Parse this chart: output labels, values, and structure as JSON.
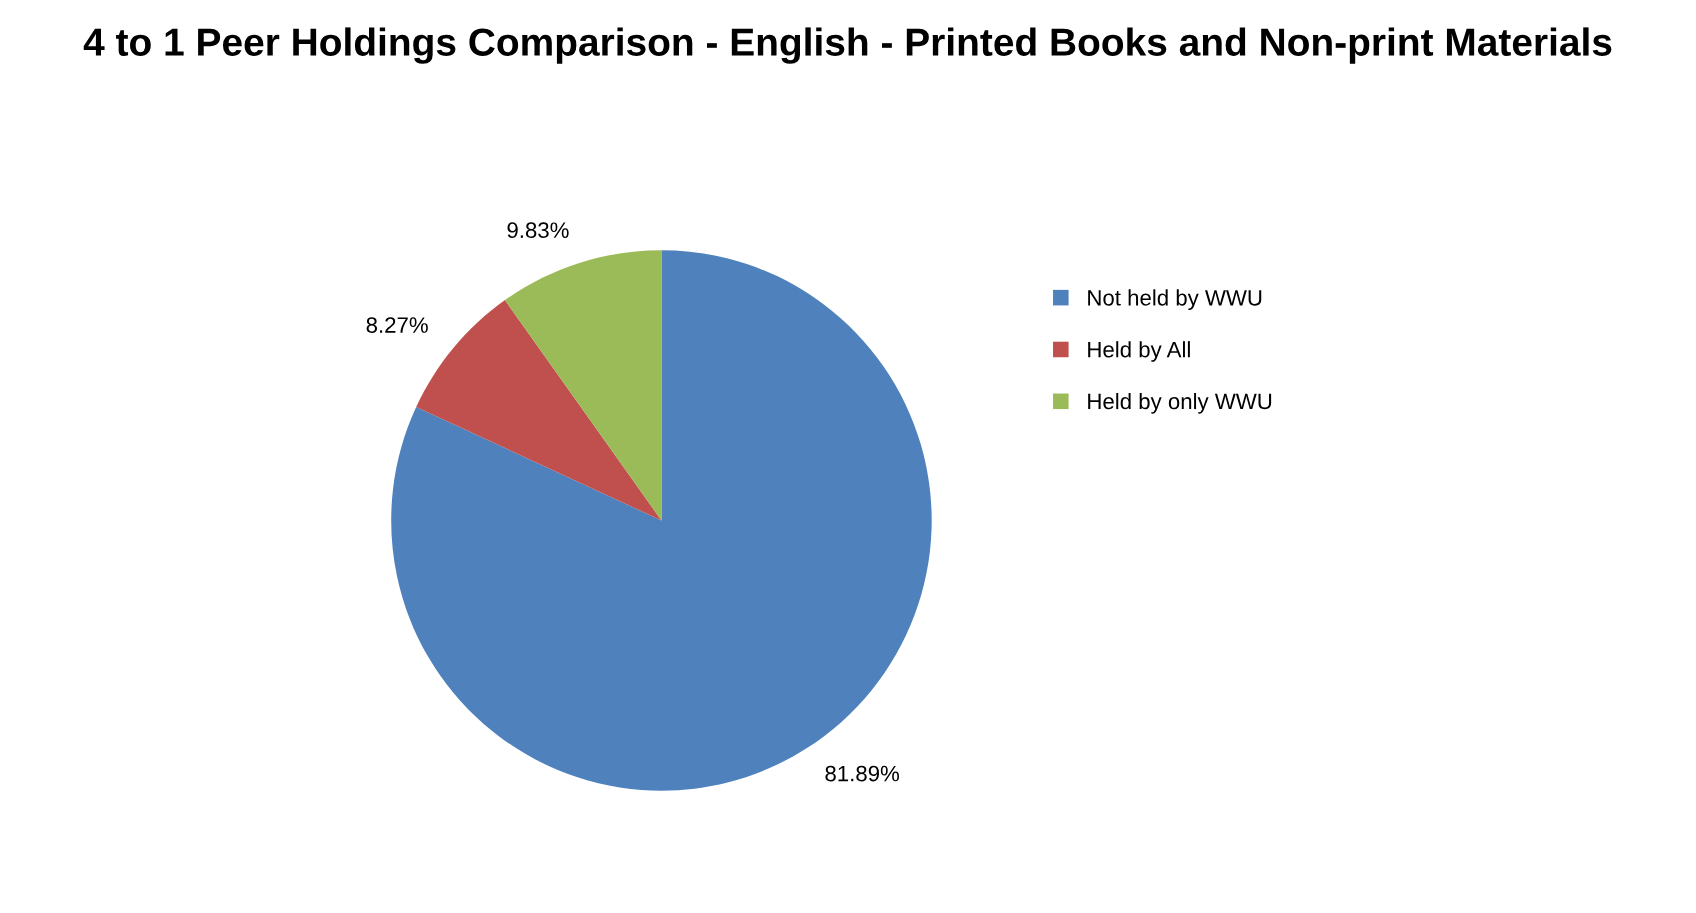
{
  "chart_data": {
    "type": "pie",
    "title": "4 to 1 Peer Holdings Comparison - English - Printed Books and Non-print Materials",
    "categories": [
      "Not held by WWU",
      "Held by All",
      "Held by only WWU"
    ],
    "values": [
      81.89,
      8.27,
      9.83
    ],
    "colors": [
      "#4f81bd",
      "#c0504d",
      "#9bbb59"
    ],
    "value_labels": [
      "81.89%",
      "8.27%",
      "9.83%"
    ],
    "legend": "right"
  }
}
